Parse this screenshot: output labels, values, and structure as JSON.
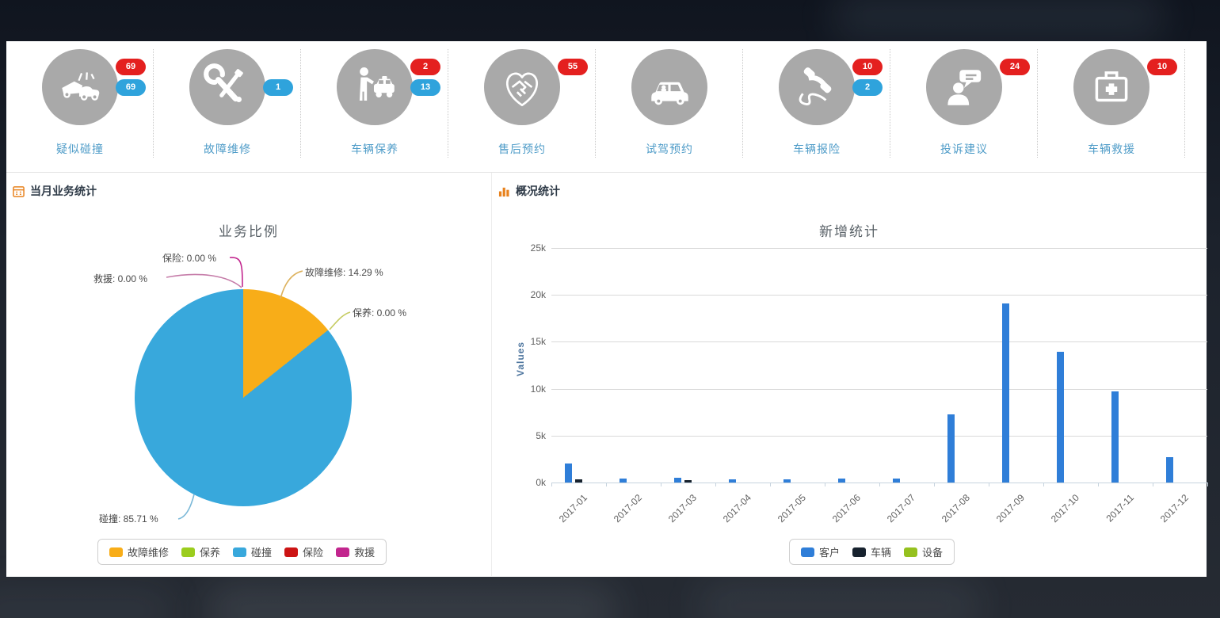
{
  "quick_actions": {
    "items": [
      {
        "label": "疑似碰撞",
        "icon": "car-crash-icon",
        "badge_red": "69",
        "badge_blue": "69"
      },
      {
        "label": "故障维修",
        "icon": "tools-icon",
        "badge_blue": "1"
      },
      {
        "label": "车辆保养",
        "icon": "person-taxi-icon",
        "badge_red": "2",
        "badge_blue": "13"
      },
      {
        "label": "售后预约",
        "icon": "handshake-icon",
        "badge_red": "55"
      },
      {
        "label": "试驾预约",
        "icon": "car-icon"
      },
      {
        "label": "车辆报险",
        "icon": "phone-icon",
        "badge_red": "10",
        "badge_blue": "2"
      },
      {
        "label": "投诉建议",
        "icon": "feedback-icon",
        "badge_red": "24"
      },
      {
        "label": "车辆救援",
        "icon": "first-aid-icon",
        "badge_red": "10"
      }
    ]
  },
  "left_panel": {
    "header": "当月业务统计"
  },
  "right_panel": {
    "header": "概况统计"
  },
  "chart_data": [
    {
      "type": "pie",
      "title": "业务比例",
      "labels": [
        "故障维修",
        "保养",
        "碰撞",
        "保险",
        "救援"
      ],
      "values": [
        14.29,
        0,
        85.71,
        0,
        0
      ],
      "colors": [
        "#f8ad18",
        "#9bcd1e",
        "#38a8dc",
        "#cc1414",
        "#c2268e"
      ],
      "callouts": {
        "baoxian": "保险: 0.00 %",
        "jiuyuan": "救援: 0.00 %",
        "guzhang": "故障维修: 14.29 %",
        "baoyang": "保养: 0.00 %",
        "pengzhuang": "碰撞: 85.71 %"
      },
      "legend_position": "bottom"
    },
    {
      "type": "bar",
      "title": "新增统计",
      "ylabel": "Values",
      "ylim": [
        0,
        25000
      ],
      "yticks": [
        "25k",
        "20k",
        "15k",
        "10k",
        "5k",
        "0k"
      ],
      "categories": [
        "2017-01",
        "2017-02",
        "2017-03",
        "2017-04",
        "2017-05",
        "2017-06",
        "2017-07",
        "2017-08",
        "2017-09",
        "2017-10",
        "2017-11",
        "2017-12"
      ],
      "series": [
        {
          "name": "客户",
          "color": "#2f7ed8",
          "values": [
            2000,
            400,
            550,
            350,
            300,
            400,
            450,
            7300,
            19100,
            13900,
            9700,
            2700
          ]
        },
        {
          "name": "车辆",
          "color": "#17222e",
          "values": [
            300,
            0,
            250,
            0,
            0,
            0,
            0,
            0,
            0,
            0,
            0,
            0
          ]
        },
        {
          "name": "设备",
          "color": "#95c11f",
          "values": [
            0,
            0,
            0,
            0,
            0,
            0,
            0,
            0,
            0,
            0,
            0,
            0
          ]
        }
      ],
      "grid": true,
      "legend_position": "bottom"
    }
  ]
}
